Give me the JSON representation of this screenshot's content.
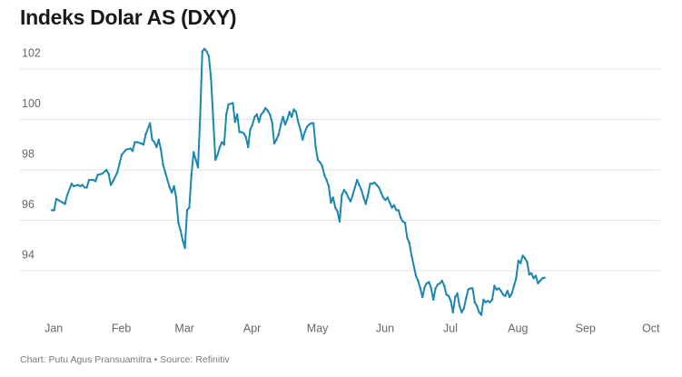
{
  "chart_data": {
    "type": "line",
    "title": "Indeks Dolar AS (DXY)",
    "xlabel": "",
    "ylabel": "",
    "ylim": [
      92.0,
      103.5
    ],
    "grid": true,
    "y_ticks": [
      94,
      96,
      98,
      100,
      102
    ],
    "x_ticks": [
      {
        "label": "Jan",
        "day": 3
      },
      {
        "label": "Feb",
        "day": 34
      },
      {
        "label": "Mar",
        "day": 63
      },
      {
        "label": "Apr",
        "day": 94
      },
      {
        "label": "May",
        "day": 124
      },
      {
        "label": "Jun",
        "day": 155
      },
      {
        "label": "Jul",
        "day": 185
      },
      {
        "label": "Aug",
        "day": 216
      },
      {
        "label": "Sep",
        "day": 247
      },
      {
        "label": "Oct",
        "day": 277
      }
    ],
    "series": [
      {
        "name": "DXY",
        "color": "#1b86b1",
        "points": [
          [
            3,
            96.4
          ],
          [
            4,
            96.4
          ],
          [
            5,
            96.85
          ],
          [
            6,
            96.8
          ],
          [
            8,
            96.7
          ],
          [
            9,
            96.65
          ],
          [
            10,
            97.0
          ],
          [
            12,
            97.45
          ],
          [
            13,
            97.35
          ],
          [
            15,
            97.4
          ],
          [
            16,
            97.35
          ],
          [
            17,
            97.4
          ],
          [
            18,
            97.3
          ],
          [
            19,
            97.3
          ],
          [
            20,
            97.6
          ],
          [
            22,
            97.6
          ],
          [
            23,
            97.55
          ],
          [
            24,
            97.8
          ],
          [
            26,
            97.85
          ],
          [
            28,
            98.0
          ],
          [
            29,
            97.85
          ],
          [
            30,
            97.4
          ],
          [
            31,
            97.55
          ],
          [
            33,
            97.9
          ],
          [
            35,
            98.6
          ],
          [
            37,
            98.8
          ],
          [
            39,
            98.85
          ],
          [
            40,
            98.75
          ],
          [
            41,
            99.1
          ],
          [
            42,
            99.1
          ],
          [
            44,
            99.05
          ],
          [
            45,
            99.0
          ],
          [
            46,
            99.4
          ],
          [
            48,
            99.85
          ],
          [
            49,
            99.2
          ],
          [
            50,
            99.1
          ],
          [
            51,
            98.9
          ],
          [
            52,
            99.2
          ],
          [
            53,
            98.8
          ],
          [
            54,
            98.2
          ],
          [
            55,
            97.9
          ],
          [
            56,
            97.6
          ],
          [
            57,
            97.3
          ],
          [
            58,
            97.1
          ],
          [
            59,
            97.35
          ],
          [
            60,
            96.9
          ],
          [
            61,
            95.9
          ],
          [
            62,
            95.6
          ],
          [
            63,
            95.2
          ],
          [
            64,
            94.9
          ],
          [
            65,
            96.4
          ],
          [
            66,
            96.5
          ],
          [
            67,
            97.8
          ],
          [
            68,
            98.7
          ],
          [
            69,
            98.4
          ],
          [
            70,
            98.1
          ],
          [
            71,
            100.1
          ],
          [
            72,
            102.7
          ],
          [
            73,
            102.8
          ],
          [
            74,
            102.7
          ],
          [
            75,
            102.5
          ],
          [
            76,
            101.6
          ],
          [
            77,
            100.0
          ],
          [
            78,
            98.4
          ],
          [
            79,
            98.6
          ],
          [
            80,
            98.9
          ],
          [
            81,
            99.1
          ],
          [
            82,
            99.0
          ],
          [
            83,
            100.2
          ],
          [
            84,
            100.6
          ],
          [
            86,
            100.65
          ],
          [
            87,
            99.9
          ],
          [
            88,
            100.2
          ],
          [
            89,
            99.5
          ],
          [
            90,
            99.5
          ],
          [
            91,
            99.45
          ],
          [
            92,
            99.3
          ],
          [
            93,
            98.9
          ],
          [
            94,
            99.6
          ],
          [
            95,
            99.8
          ],
          [
            96,
            100.1
          ],
          [
            97,
            100.2
          ],
          [
            98,
            99.9
          ],
          [
            99,
            100.2
          ],
          [
            100,
            100.3
          ],
          [
            101,
            100.45
          ],
          [
            102,
            100.35
          ],
          [
            103,
            100.2
          ],
          [
            104,
            99.9
          ],
          [
            105,
            99.05
          ],
          [
            106,
            99.2
          ],
          [
            107,
            99.4
          ],
          [
            108,
            99.8
          ],
          [
            109,
            100.1
          ],
          [
            110,
            99.8
          ],
          [
            111,
            100.0
          ],
          [
            112,
            100.3
          ],
          [
            113,
            100.1
          ],
          [
            114,
            100.4
          ],
          [
            115,
            100.3
          ],
          [
            116,
            99.9
          ],
          [
            117,
            99.6
          ],
          [
            118,
            99.2
          ],
          [
            119,
            99.5
          ],
          [
            120,
            99.7
          ],
          [
            121,
            99.8
          ],
          [
            122,
            99.85
          ],
          [
            123,
            99.85
          ],
          [
            124,
            98.9
          ],
          [
            125,
            98.4
          ],
          [
            126,
            98.3
          ],
          [
            127,
            98.15
          ],
          [
            128,
            97.8
          ],
          [
            129,
            97.6
          ],
          [
            130,
            97.35
          ],
          [
            131,
            96.7
          ],
          [
            132,
            96.9
          ],
          [
            133,
            96.5
          ],
          [
            134,
            96.35
          ],
          [
            135,
            95.95
          ],
          [
            136,
            97.0
          ],
          [
            137,
            97.2
          ],
          [
            138,
            97.1
          ],
          [
            139,
            96.9
          ],
          [
            140,
            96.75
          ],
          [
            141,
            97.0
          ],
          [
            142,
            97.3
          ],
          [
            143,
            97.6
          ],
          [
            144,
            97.4
          ],
          [
            145,
            97.2
          ],
          [
            146,
            96.9
          ],
          [
            147,
            96.65
          ],
          [
            148,
            97.0
          ],
          [
            149,
            97.45
          ],
          [
            150,
            97.45
          ],
          [
            151,
            97.5
          ],
          [
            152,
            97.4
          ],
          [
            153,
            97.3
          ],
          [
            154,
            97.1
          ],
          [
            155,
            96.9
          ],
          [
            156,
            96.8
          ],
          [
            157,
            96.9
          ],
          [
            158,
            96.7
          ],
          [
            159,
            96.5
          ],
          [
            160,
            96.6
          ],
          [
            161,
            96.4
          ],
          [
            162,
            96.4
          ],
          [
            163,
            96.1
          ],
          [
            164,
            95.95
          ],
          [
            165,
            95.9
          ],
          [
            166,
            95.3
          ],
          [
            167,
            95.1
          ],
          [
            168,
            94.6
          ],
          [
            169,
            94.2
          ],
          [
            170,
            93.8
          ],
          [
            171,
            93.6
          ],
          [
            172,
            93.3
          ],
          [
            173,
            92.95
          ],
          [
            174,
            93.35
          ],
          [
            175,
            93.5
          ],
          [
            176,
            93.55
          ],
          [
            177,
            93.3
          ],
          [
            178,
            92.85
          ],
          [
            179,
            93.3
          ],
          [
            180,
            93.45
          ],
          [
            181,
            93.5
          ],
          [
            182,
            93.6
          ],
          [
            183,
            93.4
          ],
          [
            184,
            93.05
          ],
          [
            185,
            93.0
          ],
          [
            186,
            92.8
          ],
          [
            187,
            92.35
          ],
          [
            188,
            92.95
          ],
          [
            189,
            93.1
          ],
          [
            190,
            92.6
          ],
          [
            191,
            92.35
          ],
          [
            192,
            92.5
          ],
          [
            193,
            92.9
          ],
          [
            194,
            93.25
          ],
          [
            195,
            93.3
          ],
          [
            196,
            93.3
          ],
          [
            197,
            92.75
          ],
          [
            198,
            92.6
          ],
          [
            199,
            92.35
          ],
          [
            200,
            92.25
          ],
          [
            201,
            92.85
          ],
          [
            202,
            92.75
          ],
          [
            203,
            92.8
          ],
          [
            204,
            92.75
          ],
          [
            205,
            92.85
          ],
          [
            206,
            93.4
          ],
          [
            207,
            93.25
          ],
          [
            208,
            93.3
          ],
          [
            209,
            93.2
          ],
          [
            210,
            93.05
          ],
          [
            211,
            93.0
          ],
          [
            212,
            93.2
          ],
          [
            213,
            92.95
          ],
          [
            214,
            93.1
          ],
          [
            215,
            93.4
          ],
          [
            216,
            93.7
          ],
          [
            217,
            94.4
          ],
          [
            218,
            94.3
          ],
          [
            219,
            94.6
          ],
          [
            220,
            94.5
          ],
          [
            221,
            94.35
          ],
          [
            222,
            93.85
          ],
          [
            223,
            93.9
          ],
          [
            224,
            93.7
          ],
          [
            225,
            93.8
          ],
          [
            226,
            93.5
          ],
          [
            227,
            93.6
          ],
          [
            228,
            93.7
          ],
          [
            229,
            93.72
          ]
        ]
      }
    ]
  },
  "footer": {
    "credit": "Chart: Putu Agus Pransuamitra • Source: Refinitiv"
  }
}
